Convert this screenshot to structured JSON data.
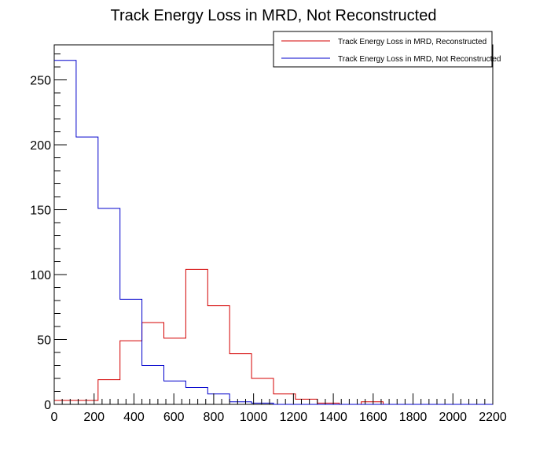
{
  "chart_data": {
    "type": "histogram",
    "title": "Track Energy Loss in MRD, Not Reconstructed",
    "xlabel": "",
    "ylabel": "",
    "xlim": [
      0,
      2200
    ],
    "ylim": [
      0,
      277
    ],
    "bin_edges": [
      0,
      110,
      220,
      330,
      440,
      550,
      660,
      770,
      880,
      990,
      1100,
      1210,
      1320,
      1430,
      1540,
      1650,
      1760,
      1870,
      1980,
      2090,
      2200
    ],
    "x_ticks": [
      0,
      200,
      400,
      600,
      800,
      1000,
      1200,
      1400,
      1600,
      1800,
      2000,
      2200
    ],
    "y_ticks": [
      0,
      50,
      100,
      150,
      200,
      250
    ],
    "legend_position": "top-right",
    "series": [
      {
        "name": "Track Energy Loss in MRD, Reconstructed",
        "color": "#d40000",
        "values": [
          3,
          3,
          19,
          49,
          63,
          51,
          104,
          76,
          39,
          20,
          8,
          4,
          1,
          0,
          2,
          0,
          0,
          0,
          0,
          0
        ]
      },
      {
        "name": "Track Energy Loss in MRD, Not Reconstructed",
        "color": "#0000cc",
        "values": [
          265,
          206,
          151,
          81,
          30,
          18,
          13,
          8,
          2,
          1,
          0,
          0,
          0,
          0,
          0,
          0,
          0,
          0,
          0,
          0
        ]
      }
    ]
  }
}
